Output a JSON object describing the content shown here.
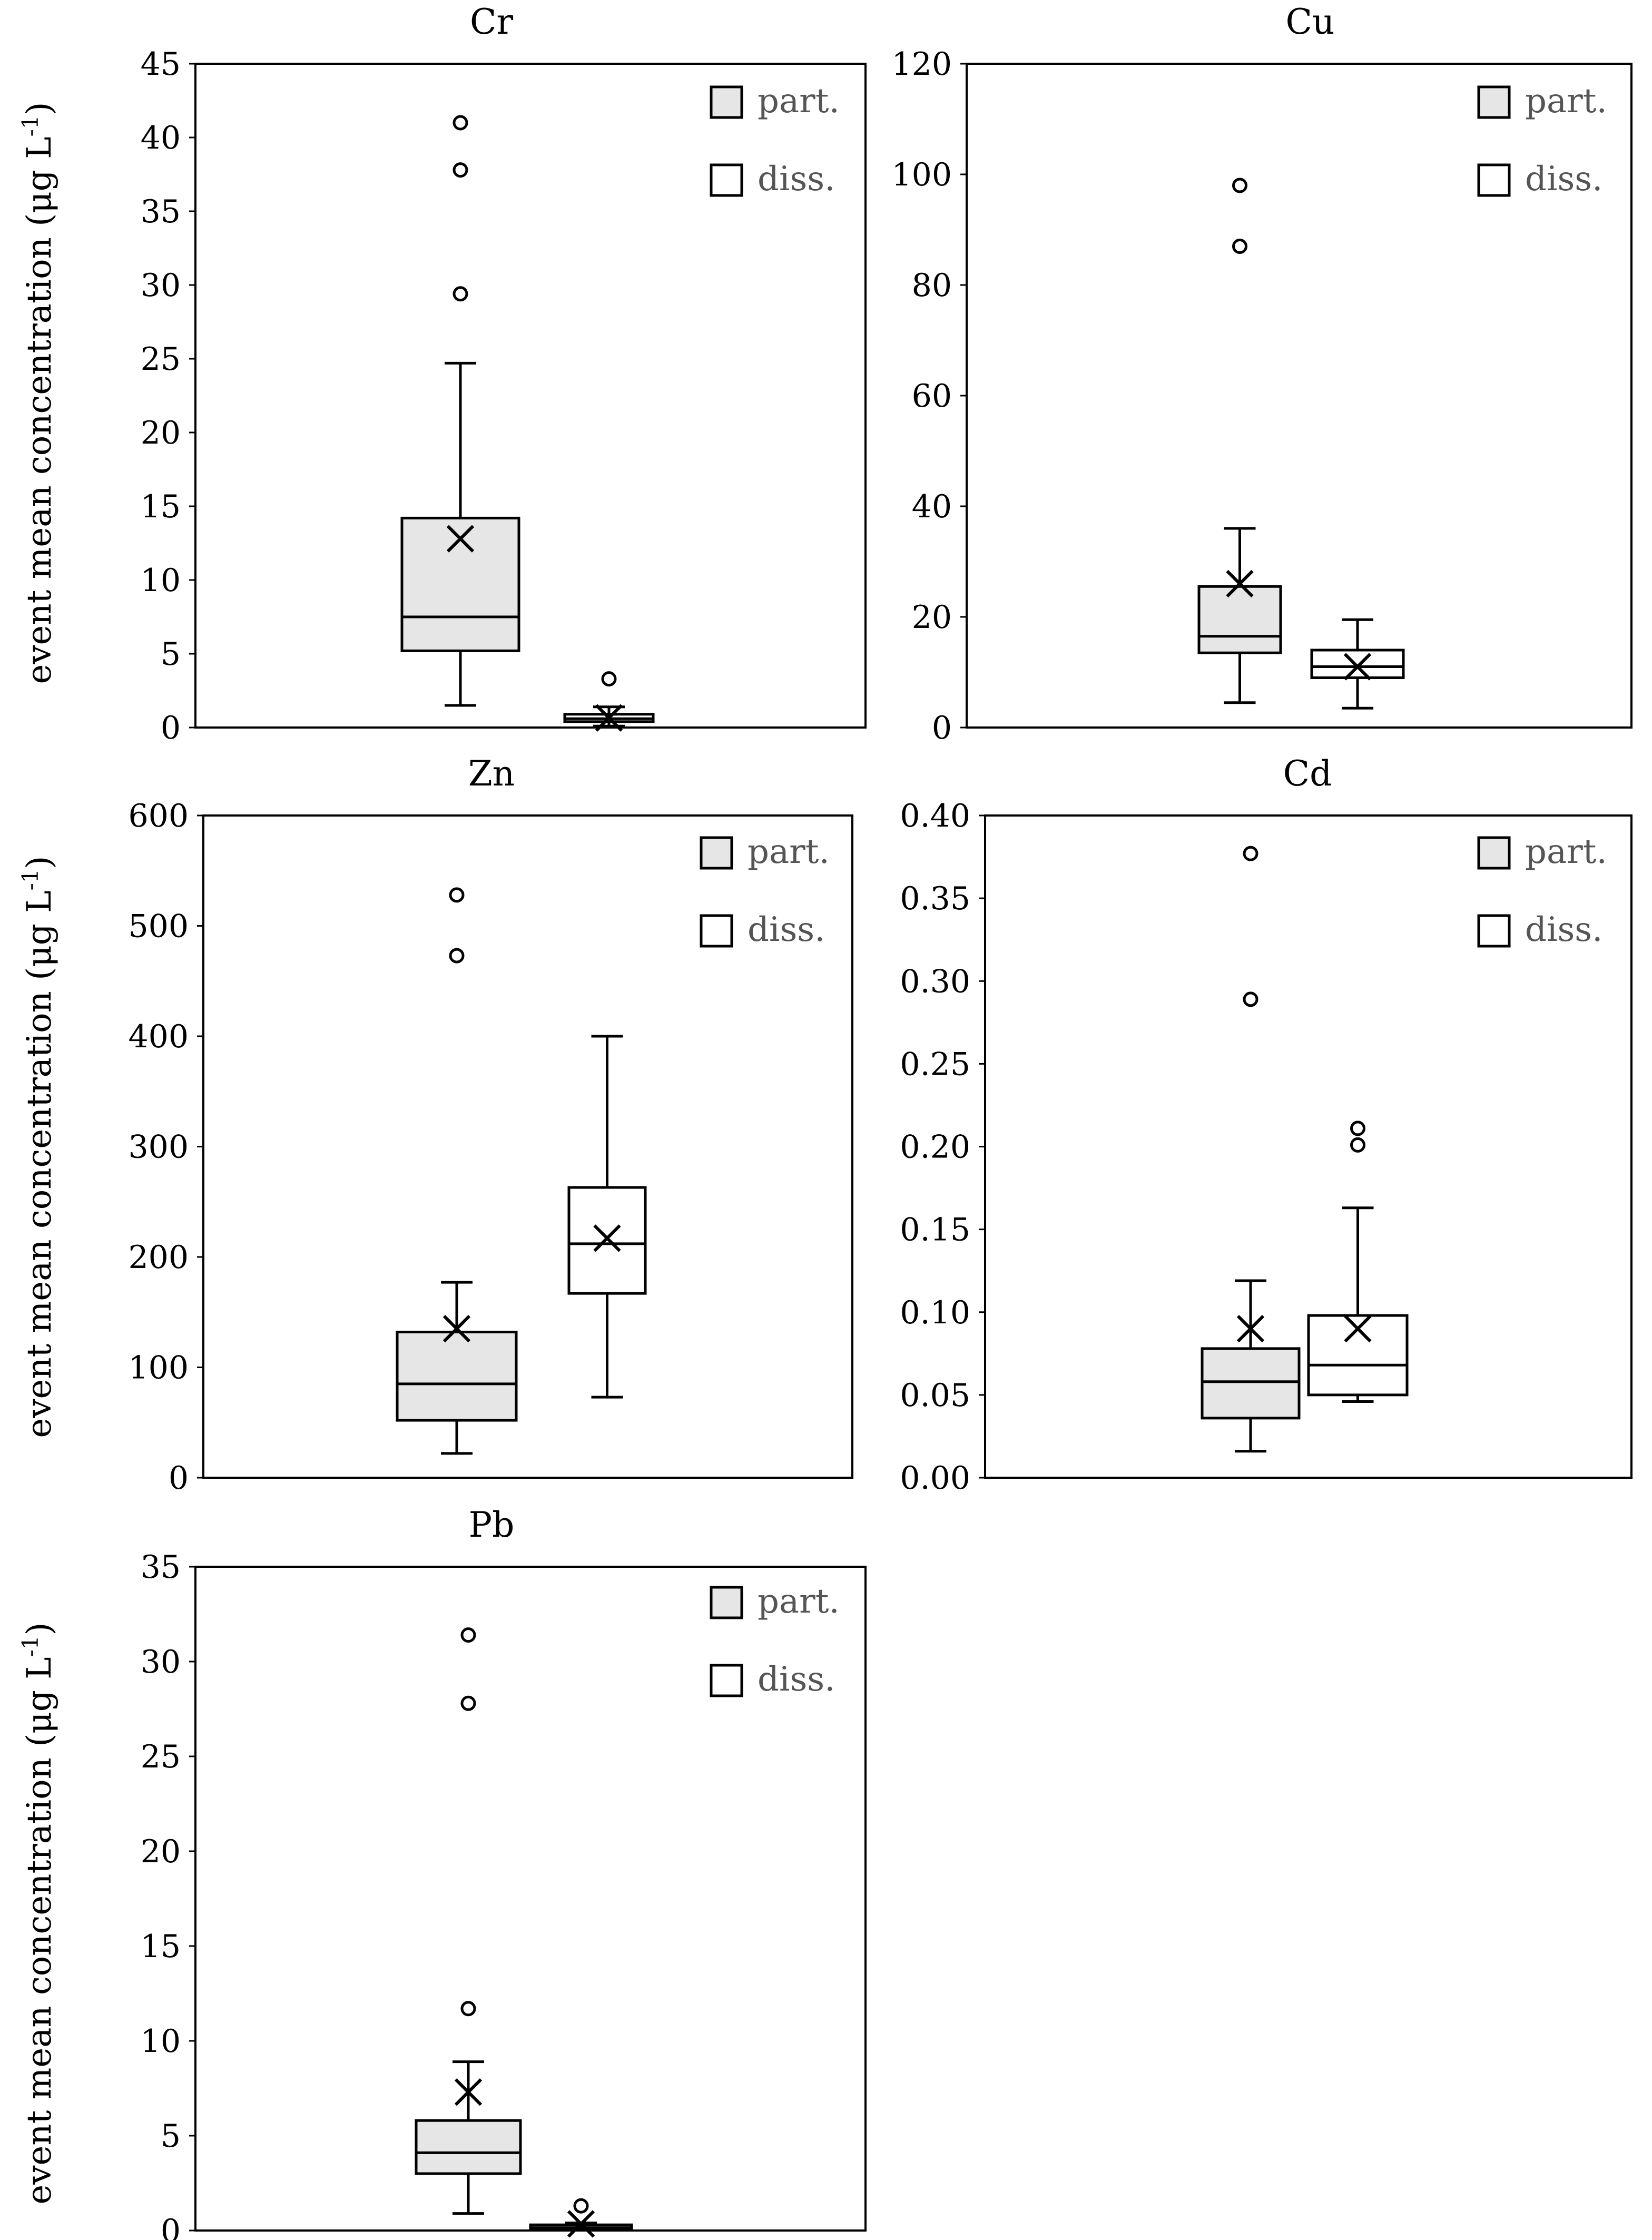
{
  "figure": {
    "ylabel_main": "event mean concentration (μg L",
    "ylabel_sup": "-1",
    "ylabel_close": ")",
    "legend": {
      "particulate": "part.",
      "dissolved": "diss."
    },
    "colors": {
      "particulate_fill": "#e6e6e6",
      "dissolved_fill": "#ffffff",
      "stroke": "#000000",
      "legend_text": "#555555"
    }
  },
  "chart_data": [
    {
      "type": "box",
      "title": "Cr",
      "ylabel": "event mean concentration (μg L-1)",
      "ylim": [
        0,
        45
      ],
      "yticks": [
        "0",
        "5",
        "10",
        "15",
        "20",
        "25",
        "30",
        "35",
        "40",
        "45"
      ],
      "series": [
        {
          "name": "part.",
          "min": 1.5,
          "q1": 5.2,
          "median": 7.5,
          "q3": 14.2,
          "max": 24.7,
          "mean": 12.8,
          "outliers": [
            29.4,
            37.8,
            41.0
          ]
        },
        {
          "name": "diss.",
          "min": 0.1,
          "q1": 0.4,
          "median": 0.6,
          "q3": 0.9,
          "max": 1.4,
          "mean": 0.65,
          "outliers": [
            3.3
          ]
        }
      ]
    },
    {
      "type": "box",
      "title": "Cu",
      "ylabel": "",
      "ylim": [
        0,
        120
      ],
      "yticks": [
        "0",
        "20",
        "40",
        "60",
        "80",
        "100",
        "120"
      ],
      "series": [
        {
          "name": "part.",
          "min": 4.5,
          "q1": 13.5,
          "median": 16.5,
          "q3": 25.5,
          "max": 36.0,
          "mean": 26.0,
          "outliers": [
            87.0,
            98.0
          ]
        },
        {
          "name": "diss.",
          "min": 3.5,
          "q1": 9.0,
          "median": 11.0,
          "q3": 14.0,
          "max": 19.5,
          "mean": 11.0,
          "outliers": []
        }
      ]
    },
    {
      "type": "box",
      "title": "Zn",
      "ylabel": "event mean concentration (μg L-1)",
      "ylim": [
        0,
        600
      ],
      "yticks": [
        "0",
        "100",
        "200",
        "300",
        "400",
        "500",
        "600"
      ],
      "series": [
        {
          "name": "part.",
          "min": 22,
          "q1": 52,
          "median": 85,
          "q3": 132,
          "max": 177,
          "mean": 135,
          "outliers": [
            473,
            528
          ]
        },
        {
          "name": "diss.",
          "min": 73,
          "q1": 167,
          "median": 212,
          "q3": 263,
          "max": 400,
          "mean": 217,
          "outliers": []
        }
      ]
    },
    {
      "type": "box",
      "title": "Cd",
      "ylabel": "",
      "ylim": [
        0,
        0.4
      ],
      "yticks": [
        "0.00",
        "0.05",
        "0.10",
        "0.15",
        "0.20",
        "0.25",
        "0.30",
        "0.35",
        "0.40"
      ],
      "series": [
        {
          "name": "part.",
          "min": 0.016,
          "q1": 0.036,
          "median": 0.058,
          "q3": 0.078,
          "max": 0.119,
          "mean": 0.09,
          "outliers": [
            0.289,
            0.377
          ]
        },
        {
          "name": "diss.",
          "min": 0.046,
          "q1": 0.05,
          "median": 0.068,
          "q3": 0.098,
          "max": 0.163,
          "mean": 0.09,
          "outliers": [
            0.201,
            0.211
          ]
        }
      ]
    },
    {
      "type": "box",
      "title": "Pb",
      "ylabel": "event mean concentration (μg L-1)",
      "ylim": [
        0,
        35
      ],
      "yticks": [
        "0",
        "5",
        "10",
        "15",
        "20",
        "25",
        "30",
        "35"
      ],
      "series": [
        {
          "name": "part.",
          "min": 0.9,
          "q1": 3.0,
          "median": 4.1,
          "q3": 5.8,
          "max": 8.9,
          "mean": 7.3,
          "outliers": [
            11.7,
            27.8,
            31.4
          ]
        },
        {
          "name": "diss.",
          "min": 0.05,
          "q1": 0.1,
          "median": 0.15,
          "q3": 0.3,
          "max": 0.4,
          "mean": 0.35,
          "outliers": [
            1.3
          ]
        }
      ]
    }
  ]
}
